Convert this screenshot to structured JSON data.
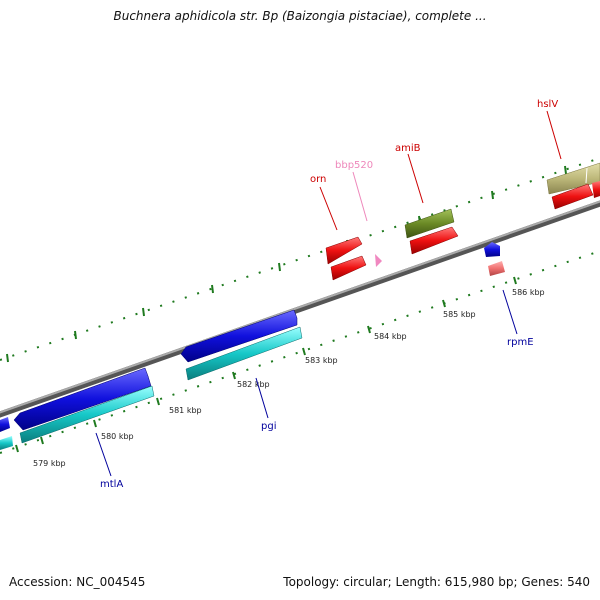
{
  "title": "Buchnera aphidicola str. Bp (Baizongia pistaciae), complete ...",
  "footer": {
    "accession": "Accession: NC_004545",
    "summary": "Topology: circular; Length: 615,980 bp; Genes: 540"
  },
  "kbp_labels": [
    "579 kbp",
    "580 kbp",
    "581 kbp",
    "582 kbp",
    "583 kbp",
    "584 kbp",
    "585 kbp",
    "586 kbp"
  ],
  "genes": [
    {
      "name": "mtlA",
      "color": "#00009c"
    },
    {
      "name": "pgi",
      "color": "#00009c"
    },
    {
      "name": "orn",
      "color": "#cc0000"
    },
    {
      "name": "bbp520",
      "color": "#ee88bb"
    },
    {
      "name": "amiB",
      "color": "#cc0000"
    },
    {
      "name": "hslV",
      "color": "#cc0000"
    },
    {
      "name": "rpmE",
      "color": "#00009c"
    }
  ],
  "colors": {
    "blue_feature": "#1010dd",
    "cyan_feature": "#16c8c8",
    "red_feature": "#ee1111",
    "olive_feature": "#6b8a26",
    "khaki_feature": "#bdb87a",
    "pink_feature": "#f088c0",
    "salmon_feature": "#f07070",
    "tick": "#1f7a1f",
    "backbone": "#888888"
  }
}
